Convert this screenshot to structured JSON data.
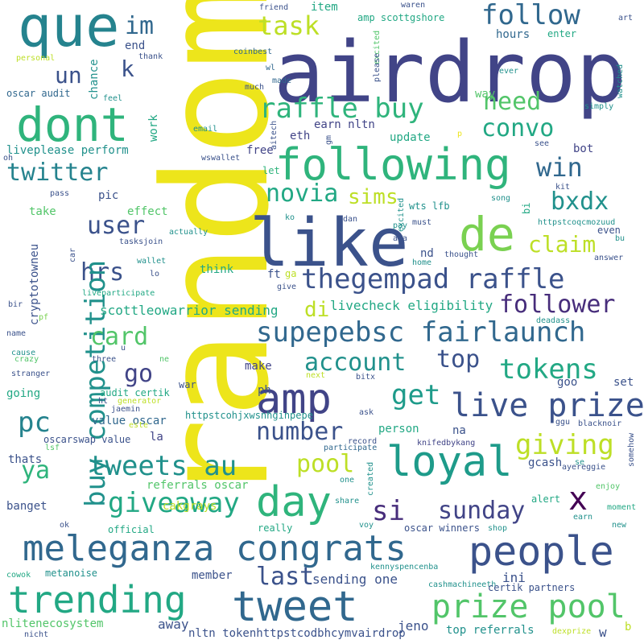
{
  "palette": {
    "yellow": "#ede51b",
    "yellowgreen": "#bddf26",
    "green": "#7ad151",
    "lightgreen": "#52c569",
    "mint": "#2fb47c",
    "seagreen": "#22a884",
    "teal": "#1e9b8a",
    "tealblue": "#21918c",
    "cyanblue": "#25838e",
    "blue": "#2a788e",
    "steel": "#31688e",
    "indigo": "#3b528b",
    "slate": "#414487",
    "purple": "#472d7b",
    "darkpurple": "#440154"
  },
  "words": [
    {
      "text": "random",
      "color": "yellow"
    },
    {
      "text": "airdrop",
      "color": "slate"
    },
    {
      "text": "que",
      "color": "cyanblue"
    },
    {
      "text": "like",
      "color": "indigo"
    },
    {
      "text": "de",
      "color": "green"
    },
    {
      "text": "following",
      "color": "mint"
    },
    {
      "text": "dont",
      "color": "mint"
    },
    {
      "text": "amp",
      "color": "slate"
    },
    {
      "text": "loyal",
      "color": "teal"
    },
    {
      "text": "day",
      "color": "mint"
    },
    {
      "text": "people",
      "color": "indigo"
    },
    {
      "text": "meleganza congrats",
      "color": "steel"
    },
    {
      "text": "trending",
      "color": "seagreen"
    },
    {
      "text": "tweet",
      "color": "steel"
    },
    {
      "text": "x",
      "color": "darkpurple"
    },
    {
      "text": "follow",
      "color": "steel"
    },
    {
      "text": "task",
      "color": "yellowgreen"
    },
    {
      "text": "im",
      "color": "steel"
    },
    {
      "text": "un",
      "color": "indigo"
    },
    {
      "text": "k",
      "color": "indigo"
    },
    {
      "text": "raffle buy",
      "color": "mint"
    },
    {
      "text": "need",
      "color": "lightgreen"
    },
    {
      "text": "convo",
      "color": "seagreen"
    },
    {
      "text": "win",
      "color": "steel"
    },
    {
      "text": "twitter",
      "color": "cyanblue"
    },
    {
      "text": "novia",
      "color": "seagreen"
    },
    {
      "text": "sims",
      "color": "yellowgreen"
    },
    {
      "text": "bxdx",
      "color": "tealblue"
    },
    {
      "text": "user",
      "color": "indigo"
    },
    {
      "text": "claim",
      "color": "yellowgreen"
    },
    {
      "text": "hrs",
      "color": "indigo"
    },
    {
      "text": "thegempad raffle",
      "color": "indigo"
    },
    {
      "text": "follower",
      "color": "purple"
    },
    {
      "text": "supepebsc fairlaunch",
      "color": "steel"
    },
    {
      "text": "buy competition",
      "color": "tealblue"
    },
    {
      "text": "card",
      "color": "lightgreen"
    },
    {
      "text": "account",
      "color": "tealblue"
    },
    {
      "text": "top",
      "color": "indigo"
    },
    {
      "text": "tokens",
      "color": "seagreen"
    },
    {
      "text": "go",
      "color": "slate"
    },
    {
      "text": "get",
      "color": "teal"
    },
    {
      "text": "live prize",
      "color": "indigo"
    },
    {
      "text": "pc",
      "color": "cyanblue"
    },
    {
      "text": "number",
      "color": "indigo"
    },
    {
      "text": "giving",
      "color": "yellowgreen"
    },
    {
      "text": "tweets au",
      "color": "tealblue"
    },
    {
      "text": "pool",
      "color": "yellowgreen"
    },
    {
      "text": "ya",
      "color": "mint"
    },
    {
      "text": "giveaway",
      "color": "seagreen"
    },
    {
      "text": "si",
      "color": "purple"
    },
    {
      "text": "sunday",
      "color": "slate"
    },
    {
      "text": "last",
      "color": "indigo"
    },
    {
      "text": "prize pool",
      "color": "lightgreen"
    },
    {
      "text": "di",
      "color": "yellowgreen"
    },
    {
      "text": "scottleowarrior sending",
      "color": "seagreen"
    },
    {
      "text": "livecheck eligibility",
      "color": "seagreen"
    },
    {
      "text": "pic",
      "color": "indigo"
    },
    {
      "text": "take",
      "color": "lightgreen"
    },
    {
      "text": "effect",
      "color": "lightgreen"
    },
    {
      "text": "liveplease perform",
      "color": "tealblue"
    },
    {
      "text": "eth",
      "color": "slate"
    },
    {
      "text": "earn nltn",
      "color": "slate"
    },
    {
      "text": "update",
      "color": "seagreen"
    },
    {
      "text": "free",
      "color": "slate"
    },
    {
      "text": "item",
      "color": "seagreen"
    },
    {
      "text": "amp scottgshore",
      "color": "seagreen"
    },
    {
      "text": "hours",
      "color": "steel"
    },
    {
      "text": "enter",
      "color": "seagreen"
    },
    {
      "text": "oscar audit",
      "color": "steel"
    },
    {
      "text": "chance",
      "color": "tealblue"
    },
    {
      "text": "end",
      "color": "indigo"
    },
    {
      "text": "thank",
      "color": "indigo"
    },
    {
      "text": "personal",
      "color": "yellowgreen"
    },
    {
      "text": "friend",
      "color": "indigo"
    },
    {
      "text": "waren",
      "color": "indigo"
    },
    {
      "text": "way",
      "color": "lightgreen"
    },
    {
      "text": "art",
      "color": "indigo"
    },
    {
      "text": "coinbest",
      "color": "steel"
    },
    {
      "text": "wl",
      "color": "steel"
    },
    {
      "text": "made",
      "color": "steel"
    },
    {
      "text": "much",
      "color": "indigo"
    },
    {
      "text": "feel",
      "color": "tealblue"
    },
    {
      "text": "work",
      "color": "seagreen"
    },
    {
      "text": "email",
      "color": "tealblue"
    },
    {
      "text": "aitech",
      "color": "indigo"
    },
    {
      "text": "gm",
      "color": "indigo"
    },
    {
      "text": "excited",
      "color": "lightgreen"
    },
    {
      "text": "p",
      "color": "yellow"
    },
    {
      "text": "please",
      "color": "indigo"
    },
    {
      "text": "ever",
      "color": "tealblue"
    },
    {
      "text": "watched",
      "color": "tealblue"
    },
    {
      "text": "simply",
      "color": "tealblue"
    },
    {
      "text": "see",
      "color": "indigo"
    },
    {
      "text": "kit",
      "color": "indigo"
    },
    {
      "text": "bot",
      "color": "slate"
    },
    {
      "text": "oh",
      "color": "indigo"
    },
    {
      "text": "wswallet",
      "color": "indigo"
    },
    {
      "text": "let",
      "color": "mint"
    },
    {
      "text": "pass",
      "color": "indigo"
    },
    {
      "text": "wts lfb",
      "color": "tealblue"
    },
    {
      "text": "song",
      "color": "tealblue"
    },
    {
      "text": "bi",
      "color": "seagreen"
    },
    {
      "text": "httpstcoqcmozuud",
      "color": "tealblue"
    },
    {
      "text": "even",
      "color": "indigo"
    },
    {
      "text": "bu",
      "color": "tealblue"
    },
    {
      "text": "ko",
      "color": "tealblue"
    },
    {
      "text": "dan",
      "color": "indigo"
    },
    {
      "text": "pay",
      "color": "tealblue"
    },
    {
      "text": "must",
      "color": "indigo"
    },
    {
      "text": "aja",
      "color": "indigo"
    },
    {
      "text": "excited",
      "color": "tealblue"
    },
    {
      "text": "cryptotowneu",
      "color": "indigo"
    },
    {
      "text": "tasksjoin",
      "color": "indigo"
    },
    {
      "text": "actually",
      "color": "tealblue"
    },
    {
      "text": "car",
      "color": "indigo"
    },
    {
      "text": "wallet",
      "color": "tealblue"
    },
    {
      "text": "lo",
      "color": "indigo"
    },
    {
      "text": "think",
      "color": "seagreen"
    },
    {
      "text": "ft",
      "color": "indigo"
    },
    {
      "text": "ga",
      "color": "yellowgreen"
    },
    {
      "text": "give",
      "color": "indigo"
    },
    {
      "text": "nd",
      "color": "indigo"
    },
    {
      "text": "home",
      "color": "tealblue"
    },
    {
      "text": "thought",
      "color": "indigo"
    },
    {
      "text": "answer",
      "color": "indigo"
    },
    {
      "text": "liveparticipate",
      "color": "seagreen"
    },
    {
      "text": "bir",
      "color": "indigo"
    },
    {
      "text": "pf",
      "color": "green"
    },
    {
      "text": "name",
      "color": "indigo"
    },
    {
      "text": "deadass",
      "color": "tealblue"
    },
    {
      "text": "cause",
      "color": "tealblue"
    },
    {
      "text": "crazy",
      "color": "lightgreen"
    },
    {
      "text": "stranger",
      "color": "indigo"
    },
    {
      "text": "u",
      "color": "indigo"
    },
    {
      "text": "three",
      "color": "indigo"
    },
    {
      "text": "ne",
      "color": "lightgreen"
    },
    {
      "text": "make",
      "color": "slate"
    },
    {
      "text": "next",
      "color": "yellowgreen"
    },
    {
      "text": "bitx",
      "color": "indigo"
    },
    {
      "text": "going",
      "color": "seagreen"
    },
    {
      "text": "audit certik",
      "color": "seagreen"
    },
    {
      "text": "war",
      "color": "indigo"
    },
    {
      "text": "ph",
      "color": "indigo"
    },
    {
      "text": "goo",
      "color": "indigo"
    },
    {
      "text": "set",
      "color": "indigo"
    },
    {
      "text": "ht",
      "color": "indigo"
    },
    {
      "text": "generator",
      "color": "yellowgreen"
    },
    {
      "text": "jaemin",
      "color": "indigo"
    },
    {
      "text": "httpstcohjxwsnhginpepe",
      "color": "tealblue"
    },
    {
      "text": "ask",
      "color": "indigo"
    },
    {
      "text": "ggu",
      "color": "indigo"
    },
    {
      "text": "blacknoir",
      "color": "indigo"
    },
    {
      "text": "value oscar",
      "color": "steel"
    },
    {
      "text": "la",
      "color": "slate"
    },
    {
      "text": "este",
      "color": "yellowgreen"
    },
    {
      "text": "oscarswap value",
      "color": "indigo"
    },
    {
      "text": "person",
      "color": "seagreen"
    },
    {
      "text": "na",
      "color": "indigo"
    },
    {
      "text": "knifedbykang",
      "color": "slate"
    },
    {
      "text": "record",
      "color": "indigo"
    },
    {
      "text": "participate",
      "color": "steel"
    },
    {
      "text": "somehow",
      "color": "indigo"
    },
    {
      "text": "thats",
      "color": "indigo"
    },
    {
      "text": "lsf",
      "color": "lightgreen"
    },
    {
      "text": "gcash",
      "color": "indigo"
    },
    {
      "text": "ayereggie",
      "color": "indigo"
    },
    {
      "text": "se",
      "color": "tealblue"
    },
    {
      "text": "created",
      "color": "tealblue"
    },
    {
      "text": "one",
      "color": "tealblue"
    },
    {
      "text": "referrals oscar",
      "color": "lightgreen"
    },
    {
      "text": "enjoy",
      "color": "lightgreen"
    },
    {
      "text": "banget",
      "color": "indigo"
    },
    {
      "text": "cakgrays",
      "color": "yellowgreen"
    },
    {
      "text": "share",
      "color": "tealblue"
    },
    {
      "text": "alert",
      "color": "seagreen"
    },
    {
      "text": "moment",
      "color": "seagreen"
    },
    {
      "text": "ok",
      "color": "indigo"
    },
    {
      "text": "official",
      "color": "seagreen"
    },
    {
      "text": "really",
      "color": "seagreen"
    },
    {
      "text": "voy",
      "color": "tealblue"
    },
    {
      "text": "oscar winners",
      "color": "indigo"
    },
    {
      "text": "shop",
      "color": "tealblue"
    },
    {
      "text": "earn",
      "color": "tealblue"
    },
    {
      "text": "new",
      "color": "tealblue"
    },
    {
      "text": "kennyspencenba",
      "color": "tealblue"
    },
    {
      "text": "cowok",
      "color": "seagreen"
    },
    {
      "text": "metanoise",
      "color": "tealblue"
    },
    {
      "text": "member",
      "color": "indigo"
    },
    {
      "text": "sending one",
      "color": "indigo"
    },
    {
      "text": "ini",
      "color": "indigo"
    },
    {
      "text": "cashmachineeth",
      "color": "tealblue"
    },
    {
      "text": "certik partners",
      "color": "indigo"
    },
    {
      "text": "nlitenecosystem",
      "color": "lightgreen"
    },
    {
      "text": "away",
      "color": "indigo"
    },
    {
      "text": "jeno",
      "color": "indigo"
    },
    {
      "text": "w",
      "color": "indigo"
    },
    {
      "text": "b",
      "color": "yellowgreen"
    },
    {
      "text": "nicht",
      "color": "indigo"
    },
    {
      "text": "nltn tokenhttpstcodbhcymvairdrop",
      "color": "indigo"
    },
    {
      "text": "top referrals",
      "color": "tealblue"
    },
    {
      "text": "dexprize",
      "color": "yellowgreen"
    }
  ]
}
